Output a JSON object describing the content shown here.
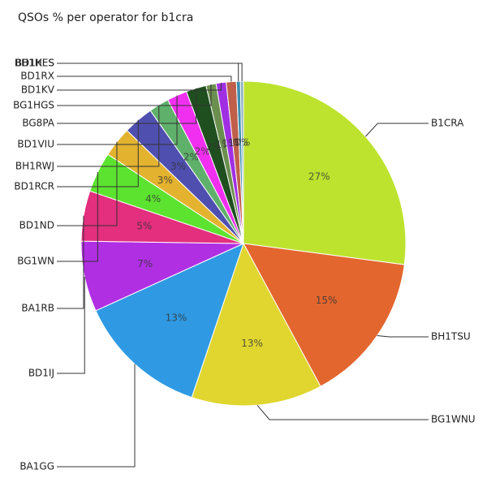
{
  "chart_data": {
    "type": "pie",
    "title": "QSOs % per operator for b1cra",
    "categories": [
      "B1CRA",
      "BH1TSU",
      "BG1WNU",
      "BA1GG",
      "BD1IJ",
      "BA1RB",
      "BG1WN",
      "BD1ND",
      "BD1RCR",
      "BH1RWJ",
      "BD1VIU",
      "BG8PA",
      "BG1HGS",
      "BD1KV",
      "BD1RX",
      "BH1HES",
      "BD1KES"
    ],
    "values": [
      27,
      15,
      13,
      13,
      7,
      5,
      4,
      3,
      3,
      2,
      2,
      2,
      1,
      1,
      1,
      0.4,
      0.3
    ],
    "value_labels": [
      "27%",
      "15%",
      "13%",
      "13%",
      "7%",
      "5%",
      "4%",
      "3%",
      "3%",
      "2%",
      "2%",
      "2%",
      "1%",
      "1%",
      "1%",
      "0%",
      "0%"
    ],
    "colors": [
      "#bde32f",
      "#e3662f",
      "#e0d62f",
      "#2f9ae3",
      "#b02fe3",
      "#e32f7e",
      "#5ce32f",
      "#e3b22f",
      "#4f4fb0",
      "#5fb06a",
      "#f02ff0",
      "#1f4f1f",
      "#6b8f4f",
      "#a02fe3",
      "#c0604a",
      "#3f8fb0",
      "#8fb0c0"
    ]
  }
}
